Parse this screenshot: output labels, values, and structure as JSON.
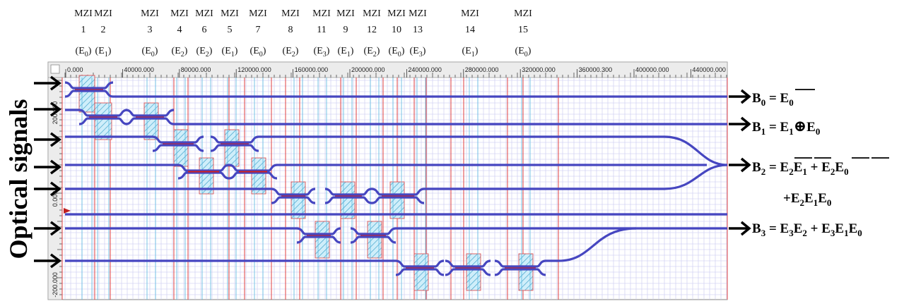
{
  "mzis": [
    {
      "name": "MZI",
      "num": "1",
      "sig": "(E",
      "sub": "0",
      "close": ")"
    },
    {
      "name": "MZI",
      "num": "2",
      "sig": "(E",
      "sub": "1",
      "close": ")"
    },
    {
      "name": "MZI",
      "num": "3",
      "sig": "(E",
      "sub": "0",
      "close": ")"
    },
    {
      "name": "MZI",
      "num": "4",
      "sig": "(E",
      "sub": "2",
      "close": ")"
    },
    {
      "name": "MZI",
      "num": "6",
      "sig": "(E",
      "sub": "2",
      "close": ")"
    },
    {
      "name": "MZI",
      "num": "5",
      "sig": "(E",
      "sub": "1",
      "close": ")"
    },
    {
      "name": "MZI",
      "num": "7",
      "sig": "(E",
      "sub": "0",
      "close": ")"
    },
    {
      "name": "MZI",
      "num": "8",
      "sig": "(E",
      "sub": "2",
      "close": ")"
    },
    {
      "name": "MZI",
      "num": "11",
      "sig": "(E",
      "sub": "3",
      "close": ")"
    },
    {
      "name": "MZI",
      "num": "9",
      "sig": "(E",
      "sub": "1",
      "close": ")"
    },
    {
      "name": "MZI",
      "num": "12",
      "sig": "(E",
      "sub": "2",
      "close": ")"
    },
    {
      "name": "MZI",
      "num": "10",
      "sig": "(E",
      "sub": "0",
      "close": ")"
    },
    {
      "name": "MZI",
      "num": "13",
      "sig": "(E",
      "sub": "3",
      "close": ")"
    },
    {
      "name": "MZI",
      "num": "14",
      "sig": "(E",
      "sub": "1",
      "close": ")"
    },
    {
      "name": "MZI",
      "num": "15",
      "sig": "(E",
      "sub": "0",
      "close": ")"
    }
  ],
  "x_ticks": [
    "0.000",
    "40000.000",
    "80000.000",
    "120000.000",
    "160000.000",
    "200000.000",
    "240000.000",
    "280000.000",
    "320000.000",
    "360000.300",
    "400000.000",
    "440000.000"
  ],
  "y_ticks": [
    "200.000",
    "0.000",
    "-200.000"
  ],
  "side_label": "Optical signals",
  "outputs": {
    "b0": {
      "b": "B",
      "sub": "0",
      "rest": " = ",
      "e": "E",
      "esub": "0"
    },
    "b1": {
      "b": "B",
      "sub": "1",
      "rest": " = E",
      "esub1": "1",
      "xor": "⊕",
      "e2": "E",
      "esub2": "0"
    },
    "b2": {
      "b": "B",
      "sub": "2",
      "rest": " = ",
      "t1a": "E",
      "t1as": "2",
      "t1b": "E",
      "t1bs": "1",
      "plus": " + ",
      "t2a": "E",
      "t2as": "2",
      "t2b": "E",
      "t2bs": "0"
    },
    "b2b": {
      "plus": "+",
      "a": "E",
      "as": "2",
      "b": "E",
      "bs": "1",
      "c": "E",
      "cs": "0"
    },
    "b3": {
      "b": "B",
      "sub": "3",
      "rest": " = E",
      "s1": "3",
      "e2": "E",
      "s2": "2",
      "plus": " + E",
      "s3": "3",
      "e4": "E",
      "s4": "1",
      "e5": "E",
      "s5": "0"
    }
  },
  "colors": {
    "waveguide": "#4646c0",
    "grid": "#c6c6f0",
    "redline": "#e04040",
    "hatch": "#3aa0c8",
    "frame": "#808080"
  }
}
